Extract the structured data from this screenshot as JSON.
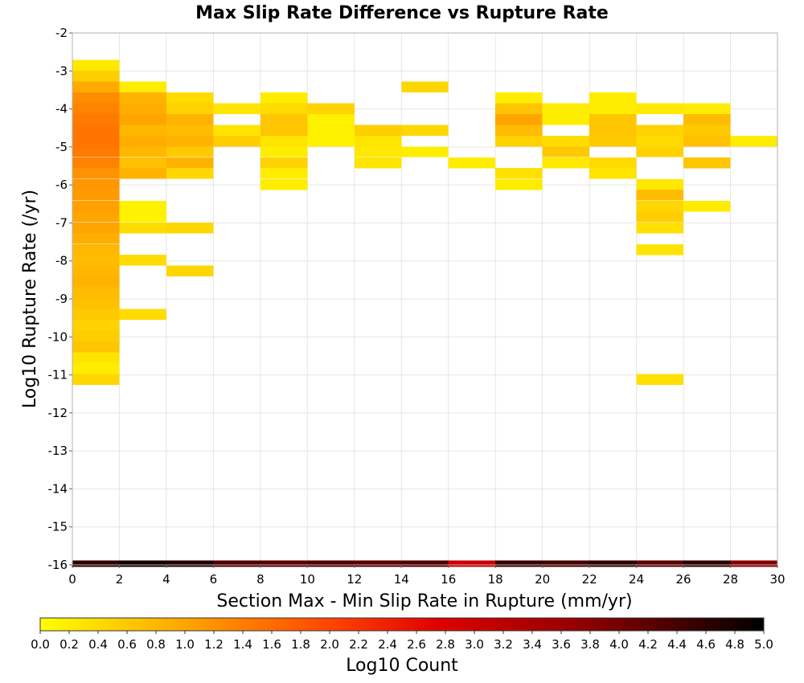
{
  "chart_data": {
    "type": "heatmap",
    "title": "Max Slip Rate Difference vs Rupture Rate",
    "xlabel": "Section Max - Min Slip Rate in Rupture (mm/yr)",
    "ylabel": "Log10 Rupture Rate (/yr)",
    "xlim": [
      0,
      30
    ],
    "ylim": [
      -16,
      -2
    ],
    "x_ticks": [
      "0",
      "2",
      "4",
      "6",
      "8",
      "10",
      "12",
      "14",
      "16",
      "18",
      "20",
      "22",
      "24",
      "26",
      "28",
      "30"
    ],
    "y_ticks": [
      "-2",
      "-3",
      "-4",
      "-5",
      "-6",
      "-7",
      "-8",
      "-9",
      "-10",
      "-11",
      "-12",
      "-13",
      "-14",
      "-15",
      "-16"
    ],
    "x_bin_width": 2,
    "y_bin_height": 0.285,
    "grid": true,
    "colorbar": {
      "label": "Log10 Count",
      "range": [
        0,
        5
      ],
      "ticks": [
        "0.0",
        "0.2",
        "0.4",
        "0.6",
        "0.8",
        "1.0",
        "1.2",
        "1.4",
        "1.6",
        "1.8",
        "2.0",
        "2.2",
        "2.4",
        "2.6",
        "2.8",
        "3.0",
        "3.2",
        "3.4",
        "3.6",
        "3.8",
        "4.0",
        "4.2",
        "4.4",
        "4.6",
        "4.8",
        "5.0"
      ],
      "colors": [
        "#ffff00",
        "#ffa500",
        "#ff4500",
        "#e00000",
        "#900000",
        "#000000"
      ]
    },
    "cells": [
      {
        "x": 0,
        "y": -2.85,
        "v": 0.25
      },
      {
        "x": 0,
        "y": -3.14,
        "v": 0.55
      },
      {
        "x": 0,
        "y": -3.42,
        "v": 0.95
      },
      {
        "x": 0,
        "y": -3.71,
        "v": 1.25
      },
      {
        "x": 0,
        "y": -3.99,
        "v": 1.35
      },
      {
        "x": 0,
        "y": -4.28,
        "v": 1.45
      },
      {
        "x": 0,
        "y": -4.56,
        "v": 1.5
      },
      {
        "x": 0,
        "y": -4.85,
        "v": 1.5
      },
      {
        "x": 0,
        "y": -5.13,
        "v": 1.45
      },
      {
        "x": 0,
        "y": -5.42,
        "v": 1.35
      },
      {
        "x": 0,
        "y": -5.7,
        "v": 1.2
      },
      {
        "x": 0,
        "y": -5.99,
        "v": 1.15
      },
      {
        "x": 0,
        "y": -6.27,
        "v": 1.1
      },
      {
        "x": 0,
        "y": -6.56,
        "v": 1.05
      },
      {
        "x": 0,
        "y": -6.84,
        "v": 1.0
      },
      {
        "x": 0,
        "y": -7.13,
        "v": 1.0
      },
      {
        "x": 0,
        "y": -7.41,
        "v": 0.9
      },
      {
        "x": 0,
        "y": -7.7,
        "v": 0.8
      },
      {
        "x": 0,
        "y": -7.98,
        "v": 0.75
      },
      {
        "x": 0,
        "y": -8.27,
        "v": 0.8
      },
      {
        "x": 0,
        "y": -8.55,
        "v": 0.85
      },
      {
        "x": 0,
        "y": -8.84,
        "v": 0.75
      },
      {
        "x": 0,
        "y": -9.12,
        "v": 0.7
      },
      {
        "x": 0,
        "y": -9.41,
        "v": 0.6
      },
      {
        "x": 0,
        "y": -9.69,
        "v": 0.5
      },
      {
        "x": 0,
        "y": -9.98,
        "v": 0.55
      },
      {
        "x": 0,
        "y": -10.26,
        "v": 0.65
      },
      {
        "x": 0,
        "y": -10.55,
        "v": 0.3
      },
      {
        "x": 0,
        "y": -10.83,
        "v": 0.2
      },
      {
        "x": 0,
        "y": -11.12,
        "v": 0.45
      },
      {
        "x": 2,
        "y": -3.42,
        "v": 0.2
      },
      {
        "x": 2,
        "y": -3.71,
        "v": 0.85
      },
      {
        "x": 2,
        "y": -3.99,
        "v": 0.9
      },
      {
        "x": 2,
        "y": -4.28,
        "v": 1.0
      },
      {
        "x": 2,
        "y": -4.56,
        "v": 0.8
      },
      {
        "x": 2,
        "y": -4.85,
        "v": 0.9
      },
      {
        "x": 2,
        "y": -5.13,
        "v": 0.8
      },
      {
        "x": 2,
        "y": -5.42,
        "v": 0.7
      },
      {
        "x": 2,
        "y": -5.7,
        "v": 0.85
      },
      {
        "x": 2,
        "y": -6.56,
        "v": 0.15
      },
      {
        "x": 2,
        "y": -6.84,
        "v": 0.15
      },
      {
        "x": 2,
        "y": -7.13,
        "v": 0.4
      },
      {
        "x": 2,
        "y": -7.98,
        "v": 0.4
      },
      {
        "x": 2,
        "y": -9.41,
        "v": 0.4
      },
      {
        "x": 4,
        "y": -3.71,
        "v": 0.4
      },
      {
        "x": 4,
        "y": -3.99,
        "v": 0.5
      },
      {
        "x": 4,
        "y": -4.28,
        "v": 0.85
      },
      {
        "x": 4,
        "y": -4.56,
        "v": 0.75
      },
      {
        "x": 4,
        "y": -4.85,
        "v": 0.85
      },
      {
        "x": 4,
        "y": -5.13,
        "v": 0.6
      },
      {
        "x": 4,
        "y": -5.42,
        "v": 0.85
      },
      {
        "x": 4,
        "y": -5.7,
        "v": 0.45
      },
      {
        "x": 4,
        "y": -7.13,
        "v": 0.45
      },
      {
        "x": 4,
        "y": -8.27,
        "v": 0.45
      },
      {
        "x": 6,
        "y": -3.99,
        "v": 0.3
      },
      {
        "x": 6,
        "y": -4.56,
        "v": 0.3
      },
      {
        "x": 6,
        "y": -4.85,
        "v": 0.55
      },
      {
        "x": 8,
        "y": -3.71,
        "v": 0.2
      },
      {
        "x": 8,
        "y": -3.99,
        "v": 0.4
      },
      {
        "x": 8,
        "y": -4.28,
        "v": 0.65
      },
      {
        "x": 8,
        "y": -4.56,
        "v": 0.65
      },
      {
        "x": 8,
        "y": -4.85,
        "v": 0.3
      },
      {
        "x": 8,
        "y": -5.13,
        "v": 0.2
      },
      {
        "x": 8,
        "y": -5.42,
        "v": 0.5
      },
      {
        "x": 8,
        "y": -5.7,
        "v": 0.2
      },
      {
        "x": 8,
        "y": -5.99,
        "v": 0.2
      },
      {
        "x": 10,
        "y": -3.99,
        "v": 0.5
      },
      {
        "x": 10,
        "y": -4.28,
        "v": 0.15
      },
      {
        "x": 10,
        "y": -4.56,
        "v": 0.15
      },
      {
        "x": 10,
        "y": -4.85,
        "v": 0.15
      },
      {
        "x": 12,
        "y": -4.56,
        "v": 0.55
      },
      {
        "x": 12,
        "y": -4.85,
        "v": 0.3
      },
      {
        "x": 12,
        "y": -5.13,
        "v": 0.25
      },
      {
        "x": 12,
        "y": -5.42,
        "v": 0.3
      },
      {
        "x": 14,
        "y": -3.42,
        "v": 0.45
      },
      {
        "x": 14,
        "y": -4.56,
        "v": 0.45
      },
      {
        "x": 14,
        "y": -5.13,
        "v": 0.2
      },
      {
        "x": 16,
        "y": -5.42,
        "v": 0.2
      },
      {
        "x": 18,
        "y": -3.71,
        "v": 0.2
      },
      {
        "x": 18,
        "y": -3.99,
        "v": 0.65
      },
      {
        "x": 18,
        "y": -4.28,
        "v": 1.0
      },
      {
        "x": 18,
        "y": -4.56,
        "v": 0.75
      },
      {
        "x": 18,
        "y": -4.85,
        "v": 0.5
      },
      {
        "x": 18,
        "y": -5.7,
        "v": 0.35
      },
      {
        "x": 18,
        "y": -5.99,
        "v": 0.2
      },
      {
        "x": 20,
        "y": -3.99,
        "v": 0.2
      },
      {
        "x": 20,
        "y": -4.28,
        "v": 0.2
      },
      {
        "x": 20,
        "y": -4.85,
        "v": 0.4
      },
      {
        "x": 20,
        "y": -5.13,
        "v": 0.6
      },
      {
        "x": 20,
        "y": -5.42,
        "v": 0.25
      },
      {
        "x": 22,
        "y": -3.71,
        "v": 0.2
      },
      {
        "x": 22,
        "y": -3.99,
        "v": 0.2
      },
      {
        "x": 22,
        "y": -4.28,
        "v": 0.65
      },
      {
        "x": 22,
        "y": -4.56,
        "v": 0.65
      },
      {
        "x": 22,
        "y": -4.85,
        "v": 0.6
      },
      {
        "x": 22,
        "y": -5.42,
        "v": 0.4
      },
      {
        "x": 22,
        "y": -5.7,
        "v": 0.3
      },
      {
        "x": 24,
        "y": -3.99,
        "v": 0.25
      },
      {
        "x": 24,
        "y": -4.56,
        "v": 0.5
      },
      {
        "x": 24,
        "y": -4.85,
        "v": 0.4
      },
      {
        "x": 24,
        "y": -5.13,
        "v": 0.5
      },
      {
        "x": 24,
        "y": -5.99,
        "v": 0.25
      },
      {
        "x": 24,
        "y": -6.27,
        "v": 0.75
      },
      {
        "x": 24,
        "y": -6.56,
        "v": 0.45
      },
      {
        "x": 24,
        "y": -6.84,
        "v": 0.55
      },
      {
        "x": 24,
        "y": -7.13,
        "v": 0.35
      },
      {
        "x": 24,
        "y": -7.7,
        "v": 0.3
      },
      {
        "x": 24,
        "y": -11.12,
        "v": 0.35
      },
      {
        "x": 26,
        "y": -3.99,
        "v": 0.2
      },
      {
        "x": 26,
        "y": -4.28,
        "v": 0.75
      },
      {
        "x": 26,
        "y": -4.56,
        "v": 0.6
      },
      {
        "x": 26,
        "y": -4.85,
        "v": 0.7
      },
      {
        "x": 26,
        "y": -5.42,
        "v": 0.65
      },
      {
        "x": 26,
        "y": -6.56,
        "v": 0.2
      },
      {
        "x": 28,
        "y": -4.85,
        "v": 0.2
      }
    ],
    "bottom_strip": [
      4.6,
      4.8,
      4.7,
      4.3,
      4.2,
      4.3,
      4.2,
      4.3,
      3.0,
      4.5,
      4.4,
      4.6,
      4.2,
      4.6,
      3.8
    ]
  }
}
